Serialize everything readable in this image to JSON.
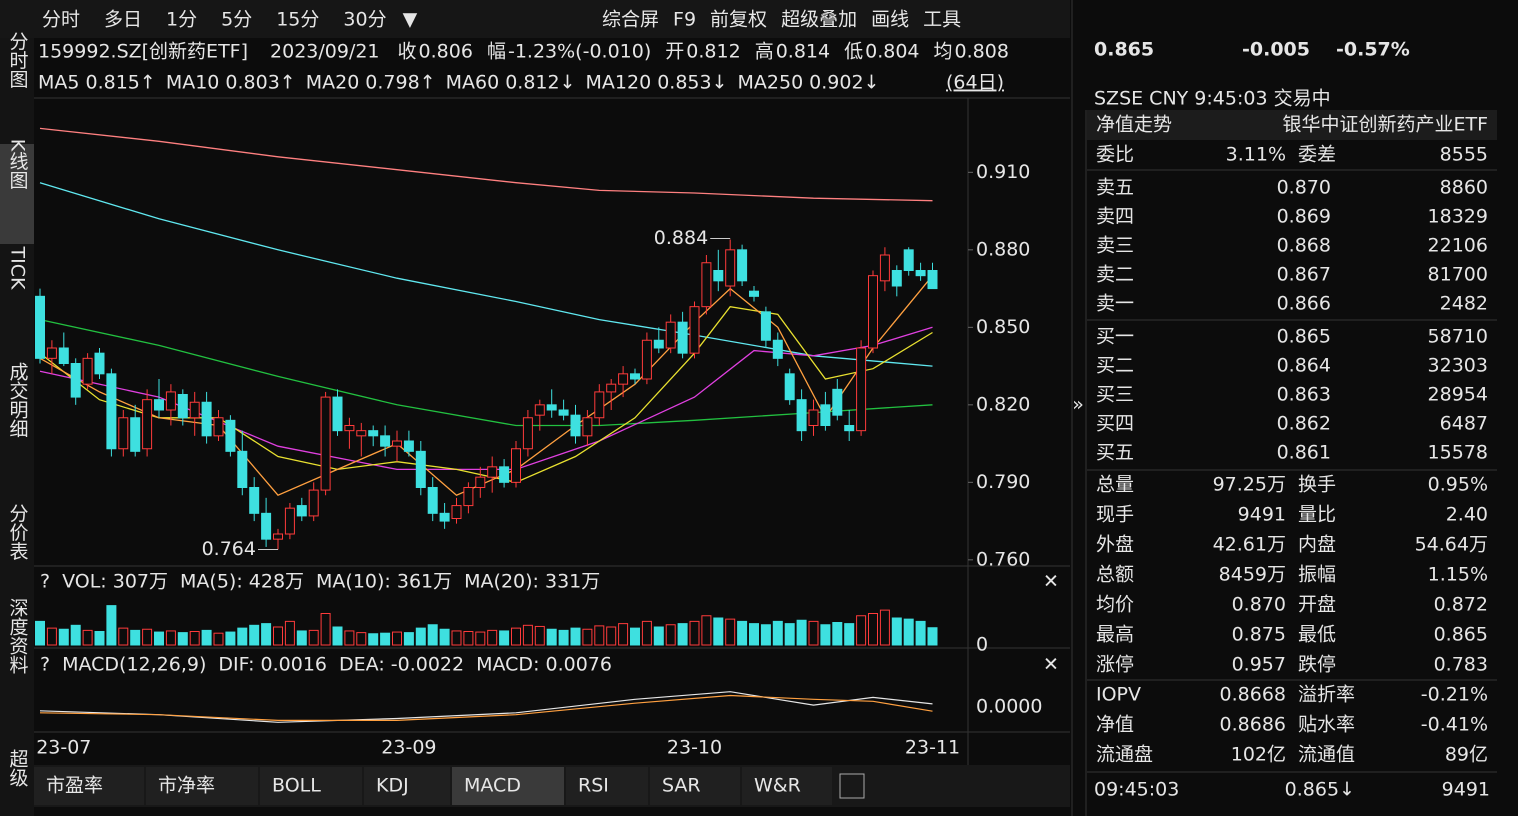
{
  "toolbar": {
    "left": [
      "分时",
      "多日",
      "1分",
      "5分",
      "15分",
      "30分"
    ],
    "right": [
      "综合屏",
      "F9",
      "前复权",
      "超级叠加",
      "画线",
      "工具"
    ]
  },
  "sidebar": [
    "分时图",
    "K线图",
    "TICK",
    "成交明细",
    "分价表",
    "深度资料",
    "超级"
  ],
  "info": {
    "code": "159992.SZ[创新药ETF]",
    "date": "2023/09/21",
    "items": [
      {
        "label": "收",
        "value": "0.806",
        "color": "#22d34a"
      },
      {
        "label": "幅",
        "value": "-1.23%(-0.010)",
        "color": "#22d34a"
      },
      {
        "label": "开",
        "value": "0.812",
        "color": "#22d34a"
      },
      {
        "label": "高",
        "value": "0.814",
        "color": "#22d34a"
      },
      {
        "label": "低",
        "value": "0.804",
        "color": "#22d34a"
      },
      {
        "label": "均",
        "value": "0.808",
        "color": "#22d34a"
      }
    ]
  },
  "ma_legend": {
    "items": [
      {
        "label": "MA5",
        "value": "0.815↑",
        "color": "#ffa040"
      },
      {
        "label": "MA10",
        "value": "0.803↑",
        "color": "#ffff30"
      },
      {
        "label": "MA20",
        "value": "0.798↑",
        "color": "#ff40ff"
      },
      {
        "label": "MA60",
        "value": "0.812↓",
        "color": "#22d34a"
      },
      {
        "label": "MA120",
        "value": "0.853↓",
        "color": "#60e8f0"
      },
      {
        "label": "MA250",
        "value": "0.902↓",
        "color": "#ff8080"
      }
    ],
    "period": "(64日)"
  },
  "kline": {
    "type": "candlestick",
    "up_color": "#ff3b3b",
    "down_color": "#3ee0e0",
    "ylim": [
      0.758,
      0.938
    ],
    "yticks": [
      {
        "value": 0.91,
        "label": "0.910"
      },
      {
        "value": 0.88,
        "label": "0.880"
      },
      {
        "value": 0.85,
        "label": "0.850"
      },
      {
        "value": 0.82,
        "label": "0.820"
      },
      {
        "value": 0.79,
        "label": "0.790"
      },
      {
        "value": 0.76,
        "label": "0.760"
      }
    ],
    "categories": [
      null,
      null,
      "23-07",
      null,
      null,
      null,
      null,
      null,
      null,
      null,
      null,
      null,
      null,
      null,
      null,
      null,
      null,
      null,
      null,
      null,
      null,
      null,
      null,
      null,
      null,
      null,
      null,
      null,
      null,
      null,
      null,
      "23-09",
      null,
      null,
      null,
      null,
      null,
      null,
      null,
      null,
      null,
      null,
      null,
      null,
      null,
      null,
      null,
      null,
      null,
      null,
      null,
      null,
      null,
      null,
      null,
      "23-10",
      null,
      null,
      null,
      null,
      null,
      null,
      null,
      null,
      null,
      null,
      null,
      null,
      null,
      null,
      null,
      null,
      null,
      null,
      null,
      "23-11"
    ],
    "candles": [
      [
        0.862,
        0.865,
        0.836,
        0.838
      ],
      [
        0.838,
        0.845,
        0.832,
        0.842
      ],
      [
        0.842,
        0.848,
        0.835,
        0.836
      ],
      [
        0.836,
        0.838,
        0.82,
        0.823
      ],
      [
        0.828,
        0.84,
        0.826,
        0.838
      ],
      [
        0.84,
        0.842,
        0.83,
        0.832
      ],
      [
        0.832,
        0.834,
        0.8,
        0.803
      ],
      [
        0.803,
        0.818,
        0.8,
        0.815
      ],
      [
        0.815,
        0.82,
        0.8,
        0.802
      ],
      [
        0.803,
        0.826,
        0.8,
        0.822
      ],
      [
        0.822,
        0.83,
        0.815,
        0.818
      ],
      [
        0.818,
        0.828,
        0.812,
        0.825
      ],
      [
        0.824,
        0.826,
        0.812,
        0.815
      ],
      [
        0.815,
        0.825,
        0.808,
        0.821
      ],
      [
        0.821,
        0.825,
        0.805,
        0.808
      ],
      [
        0.808,
        0.818,
        0.806,
        0.815
      ],
      [
        0.814,
        0.816,
        0.8,
        0.802
      ],
      [
        0.802,
        0.81,
        0.785,
        0.788
      ],
      [
        0.788,
        0.792,
        0.775,
        0.778
      ],
      [
        0.778,
        0.784,
        0.765,
        0.768
      ],
      [
        0.768,
        0.772,
        0.764,
        0.77
      ],
      [
        0.77,
        0.782,
        0.768,
        0.78
      ],
      [
        0.781,
        0.784,
        0.775,
        0.777
      ],
      [
        0.777,
        0.79,
        0.775,
        0.787
      ],
      [
        0.787,
        0.825,
        0.785,
        0.823
      ],
      [
        0.823,
        0.826,
        0.808,
        0.81
      ],
      [
        0.81,
        0.815,
        0.803,
        0.812
      ],
      [
        0.808,
        0.813,
        0.8,
        0.81
      ],
      [
        0.81,
        0.812,
        0.804,
        0.808
      ],
      [
        0.808,
        0.812,
        0.8,
        0.804
      ],
      [
        0.804,
        0.81,
        0.798,
        0.806
      ],
      [
        0.806,
        0.81,
        0.8,
        0.802
      ],
      [
        0.802,
        0.806,
        0.785,
        0.788
      ],
      [
        0.788,
        0.792,
        0.775,
        0.778
      ],
      [
        0.778,
        0.782,
        0.772,
        0.775
      ],
      [
        0.776,
        0.784,
        0.774,
        0.781
      ],
      [
        0.781,
        0.79,
        0.778,
        0.788
      ],
      [
        0.788,
        0.796,
        0.784,
        0.792
      ],
      [
        0.792,
        0.8,
        0.786,
        0.796
      ],
      [
        0.796,
        0.799,
        0.788,
        0.79
      ],
      [
        0.79,
        0.806,
        0.788,
        0.803
      ],
      [
        0.803,
        0.818,
        0.8,
        0.815
      ],
      [
        0.816,
        0.822,
        0.81,
        0.82
      ],
      [
        0.82,
        0.826,
        0.815,
        0.818
      ],
      [
        0.818,
        0.822,
        0.814,
        0.816
      ],
      [
        0.816,
        0.82,
        0.805,
        0.808
      ],
      [
        0.808,
        0.818,
        0.804,
        0.815
      ],
      [
        0.815,
        0.828,
        0.812,
        0.825
      ],
      [
        0.825,
        0.83,
        0.818,
        0.828
      ],
      [
        0.828,
        0.835,
        0.823,
        0.832
      ],
      [
        0.832,
        0.834,
        0.828,
        0.83
      ],
      [
        0.83,
        0.848,
        0.828,
        0.845
      ],
      [
        0.845,
        0.85,
        0.84,
        0.842
      ],
      [
        0.842,
        0.855,
        0.84,
        0.852
      ],
      [
        0.852,
        0.856,
        0.838,
        0.84
      ],
      [
        0.84,
        0.86,
        0.838,
        0.858
      ],
      [
        0.858,
        0.878,
        0.855,
        0.875
      ],
      [
        0.872,
        0.88,
        0.864,
        0.868
      ],
      [
        0.866,
        0.884,
        0.862,
        0.88
      ],
      [
        0.88,
        0.882,
        0.866,
        0.868
      ],
      [
        0.864,
        0.866,
        0.86,
        0.862
      ],
      [
        0.856,
        0.858,
        0.842,
        0.845
      ],
      [
        0.845,
        0.848,
        0.835,
        0.838
      ],
      [
        0.832,
        0.834,
        0.82,
        0.822
      ],
      [
        0.822,
        0.826,
        0.806,
        0.81
      ],
      [
        0.812,
        0.822,
        0.808,
        0.818
      ],
      [
        0.82,
        0.825,
        0.81,
        0.812
      ],
      [
        0.826,
        0.83,
        0.814,
        0.816
      ],
      [
        0.812,
        0.818,
        0.806,
        0.81
      ],
      [
        0.81,
        0.845,
        0.808,
        0.842
      ],
      [
        0.842,
        0.872,
        0.84,
        0.87
      ],
      [
        0.868,
        0.881,
        0.864,
        0.878
      ],
      [
        0.872,
        0.874,
        0.862,
        0.866
      ],
      [
        0.88,
        0.881,
        0.87,
        0.872
      ],
      [
        0.872,
        0.875,
        0.868,
        0.87
      ],
      [
        0.872,
        0.875,
        0.865,
        0.865
      ]
    ],
    "ma_lines": [
      {
        "color": "#ff8080",
        "x": [
          0,
          10,
          20,
          30,
          40,
          47,
          55,
          65,
          75
        ],
        "values": [
          0.927,
          0.922,
          0.916,
          0.911,
          0.906,
          0.903,
          0.902,
          0.9,
          0.899
        ]
      },
      {
        "color": "#60e8f0",
        "x": [
          0,
          10,
          20,
          30,
          40,
          47,
          55,
          65,
          75
        ],
        "values": [
          0.906,
          0.892,
          0.88,
          0.869,
          0.86,
          0.853,
          0.847,
          0.839,
          0.835
        ]
      },
      {
        "color": "#22c040",
        "x": [
          0,
          10,
          20,
          30,
          40,
          47,
          55,
          65,
          75
        ],
        "values": [
          0.853,
          0.843,
          0.831,
          0.82,
          0.812,
          0.812,
          0.814,
          0.817,
          0.82
        ]
      },
      {
        "color": "#e040e0",
        "x": [
          0,
          10,
          20,
          30,
          40,
          47,
          55,
          60,
          65,
          70,
          75
        ],
        "values": [
          0.833,
          0.823,
          0.804,
          0.795,
          0.795,
          0.806,
          0.823,
          0.841,
          0.839,
          0.843,
          0.85
        ]
      },
      {
        "color": "#e8e030",
        "x": [
          0,
          5,
          10,
          15,
          20,
          25,
          30,
          35,
          40,
          45,
          50,
          55,
          58,
          62,
          66,
          70,
          75
        ],
        "values": [
          0.84,
          0.822,
          0.815,
          0.815,
          0.8,
          0.795,
          0.798,
          0.795,
          0.79,
          0.8,
          0.815,
          0.84,
          0.858,
          0.855,
          0.83,
          0.834,
          0.848
        ]
      },
      {
        "color": "#ffa040",
        "x": [
          0,
          5,
          10,
          15,
          20,
          25,
          30,
          35,
          40,
          45,
          50,
          55,
          58,
          62,
          66,
          70,
          75
        ],
        "values": [
          0.838,
          0.825,
          0.815,
          0.812,
          0.785,
          0.795,
          0.805,
          0.785,
          0.795,
          0.812,
          0.828,
          0.852,
          0.865,
          0.85,
          0.815,
          0.842,
          0.87
        ]
      }
    ],
    "annotations": [
      {
        "index": 58,
        "value": 0.884
      },
      {
        "index": 20,
        "value": 0.764
      }
    ]
  },
  "volume": {
    "legend": [
      "?",
      "VOL: 307万",
      "MA(5): 428万",
      "MA(10): 361万",
      "MA(20): 331万"
    ],
    "legend_colors": [
      "#e6e6e6",
      "#e6e6e6",
      "#e6e6e6",
      "#ffa040",
      "#e040e0"
    ],
    "ylim": [
      0,
      800
    ],
    "yticks": [
      0
    ],
    "values": [
      420,
      300,
      280,
      350,
      260,
      240,
      700,
      300,
      260,
      280,
      230,
      250,
      220,
      240,
      260,
      210,
      230,
      300,
      350,
      380,
      320,
      420,
      250,
      260,
      560,
      320,
      250,
      220,
      200,
      210,
      230,
      220,
      300,
      360,
      280,
      250,
      240,
      230,
      260,
      250,
      300,
      350,
      330,
      280,
      260,
      300,
      280,
      340,
      320,
      380,
      300,
      420,
      320,
      360,
      380,
      420,
      520,
      480,
      460,
      420,
      380,
      360,
      420,
      380,
      440,
      420,
      360,
      400,
      380,
      520,
      560,
      620,
      480,
      460,
      420,
      307
    ]
  },
  "macd": {
    "legend": [
      "?",
      "MACD(12,26,9)",
      "DIF: 0.0016",
      "DEA: -0.0022",
      "MACD: 0.0076"
    ],
    "legend_colors": [
      "#e6e6e6",
      "#e6e6e6",
      "#e6e6e6",
      "#ffa040",
      "#60e8f0"
    ],
    "ylim": [
      -0.012,
      0.012
    ],
    "yticks": [
      {
        "value": 0,
        "label": "0.0000"
      }
    ],
    "lines": [
      {
        "color": "#e6e6e6",
        "x": [
          0,
          10,
          20,
          30,
          40,
          50,
          58,
          65,
          70,
          75
        ],
        "values": [
          -0.002,
          -0.004,
          -0.008,
          -0.006,
          -0.003,
          0.004,
          0.008,
          0.001,
          0.005,
          0.0016
        ]
      },
      {
        "color": "#ffa040",
        "x": [
          0,
          10,
          20,
          30,
          40,
          50,
          58,
          65,
          70,
          75
        ],
        "values": [
          -0.003,
          -0.004,
          -0.007,
          -0.007,
          -0.004,
          0.002,
          0.006,
          0.004,
          0.003,
          -0.0022
        ]
      }
    ]
  },
  "tabs": {
    "items": [
      "市盈率",
      "市净率",
      "BOLL",
      "KDJ",
      "MACD",
      "RSI",
      "SAR",
      "W&R"
    ],
    "active": 4
  },
  "quote": {
    "price": "0.865",
    "change": "-0.005",
    "pct": "-0.57%",
    "meta": "SZSE  CNY  9:45:03  交易中",
    "nav_title": "净值走势",
    "fund_name": "银华中证创新药产业ETF",
    "ratio": {
      "l1": "委比",
      "v1": "3.11%",
      "l2": "委差",
      "v2": "8555"
    },
    "sell": [
      {
        "label": "卖五",
        "price": "0.870",
        "volume": "8860",
        "color": "#e6e6e6"
      },
      {
        "label": "卖四",
        "price": "0.869",
        "volume": "18329",
        "color": "#22d34a"
      },
      {
        "label": "卖三",
        "price": "0.868",
        "volume": "22106",
        "color": "#22d34a"
      },
      {
        "label": "卖二",
        "price": "0.867",
        "volume": "81700",
        "color": "#22d34a"
      },
      {
        "label": "卖一",
        "price": "0.866",
        "volume": "2482",
        "color": "#22d34a"
      }
    ],
    "buy": [
      {
        "label": "买一",
        "price": "0.865",
        "volume": "58710",
        "color": "#22d34a"
      },
      {
        "label": "买二",
        "price": "0.864",
        "volume": "32303",
        "color": "#22d34a"
      },
      {
        "label": "买三",
        "price": "0.863",
        "volume": "28954",
        "color": "#22d34a"
      },
      {
        "label": "买四",
        "price": "0.862",
        "volume": "6487",
        "color": "#22d34a"
      },
      {
        "label": "买五",
        "price": "0.861",
        "volume": "15578",
        "color": "#22d34a"
      }
    ],
    "stats": [
      {
        "l1": "总量",
        "v1": "97.25万",
        "c1": "#e6e6e6",
        "l2": "换手",
        "v2": "0.95%",
        "c2": "#e6e6e6"
      },
      {
        "l1": "现手",
        "v1": "9491",
        "c1": "#e6e6e6",
        "l2": "量比",
        "v2": "2.40",
        "c2": "#e6e6e6"
      },
      {
        "l1": "外盘",
        "v1": "42.61万",
        "c1": "#ff4040",
        "l2": "内盘",
        "v2": "54.64万",
        "c2": "#22d34a"
      },
      {
        "l1": "总额",
        "v1": "8459万",
        "c1": "#e6e6e6",
        "l2": "振幅",
        "v2": "1.15%",
        "c2": "#e6e6e6"
      },
      {
        "l1": "均价",
        "v1": "0.870",
        "c1": "#22d34a",
        "l2": "开盘",
        "v2": "0.872",
        "c2": "#ff4040"
      },
      {
        "l1": "最高",
        "v1": "0.875",
        "c1": "#ff4040",
        "l2": "最低",
        "v2": "0.865",
        "c2": "#22d34a"
      },
      {
        "l1": "涨停",
        "v1": "0.957",
        "c1": "#ff4040",
        "l2": "跌停",
        "v2": "0.783",
        "c2": "#22d34a"
      },
      {
        "l1": "IOPV",
        "v1": "0.8668",
        "c1": "#22d34a",
        "l2": "溢折率",
        "v2": "-0.21%",
        "c2": "#22d34a"
      },
      {
        "l1": "净值",
        "v1": "0.8686",
        "c1": "#22d34a",
        "l2": "贴水率",
        "v2": "-0.41%",
        "c2": "#22d34a"
      },
      {
        "l1": "流通盘",
        "v1": "102亿",
        "c1": "#e6e6e6",
        "l2": "流通值",
        "v2": "89亿",
        "c2": "#e6e6e6"
      }
    ],
    "last": {
      "time": "09:45:03",
      "price": "0.865↓",
      "volume": "9491"
    }
  }
}
